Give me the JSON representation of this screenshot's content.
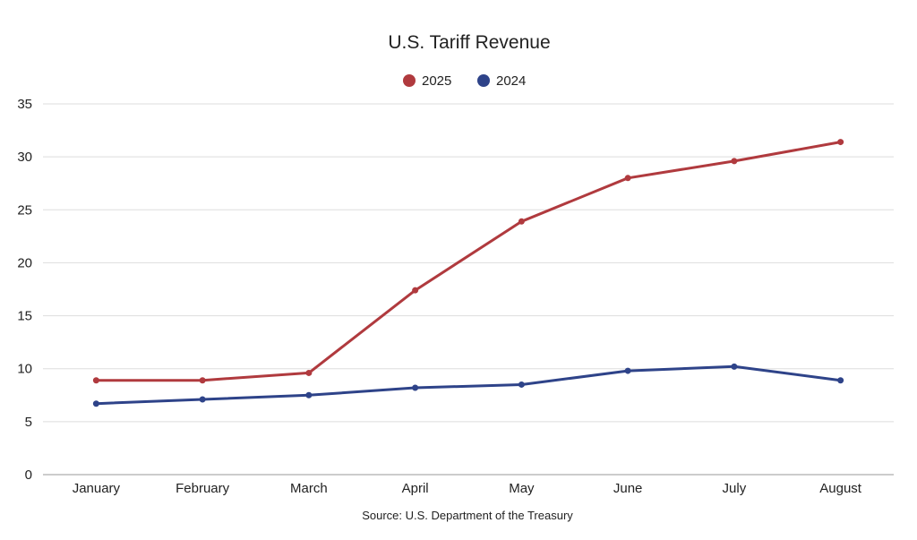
{
  "chart_data": {
    "type": "line",
    "title": "U.S. Tariff Revenue",
    "source": "Source: U.S. Department of the Treasury",
    "categories": [
      "January",
      "February",
      "March",
      "April",
      "May",
      "June",
      "July",
      "August"
    ],
    "yticks": [
      "0",
      "5",
      "10",
      "15",
      "20",
      "25",
      "30",
      "35"
    ],
    "ylim": [
      0,
      35
    ],
    "grid": true,
    "legend_position": "top-center",
    "series": [
      {
        "name": "2025",
        "color": "#b03a3e",
        "values": [
          8.9,
          8.9,
          9.6,
          17.4,
          23.9,
          28.0,
          29.6,
          31.4
        ]
      },
      {
        "name": "2024",
        "color": "#2e4389",
        "values": [
          6.7,
          7.1,
          7.5,
          8.2,
          8.5,
          9.8,
          10.2,
          8.9
        ]
      }
    ]
  }
}
